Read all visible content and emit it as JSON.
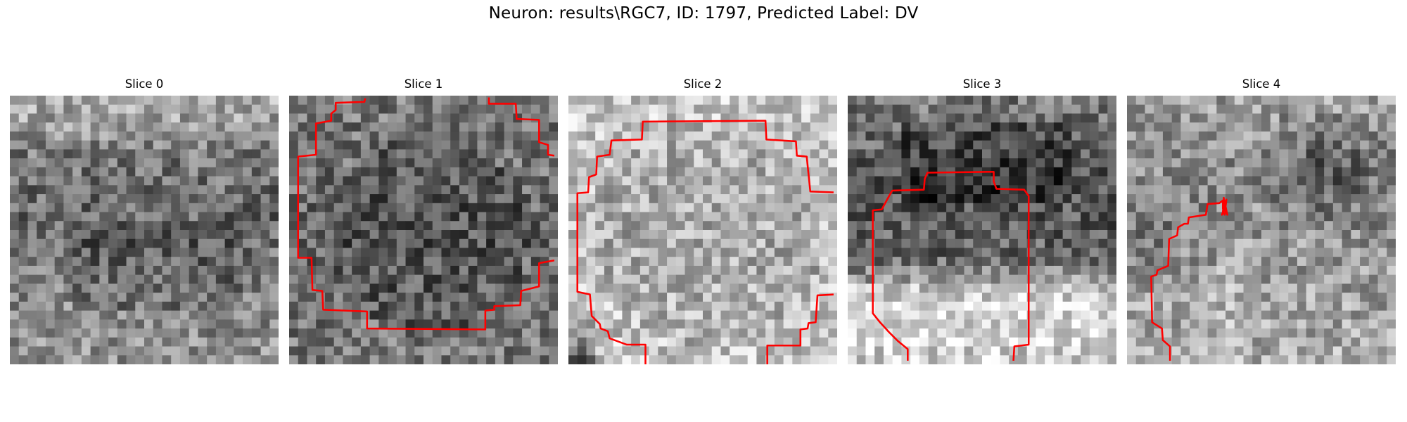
{
  "figure": {
    "title": "Neuron: results\\RGC7, ID: 1797, Predicted Label: DV"
  },
  "contour_color": "#ff0000",
  "panels": [
    {
      "title": "Slice 0",
      "seed": 11,
      "base": [
        [
          0,
          0.62
        ],
        [
          0.25,
          0.45
        ],
        [
          0.5,
          0.4
        ],
        [
          0.75,
          0.52
        ],
        [
          1,
          0.58
        ]
      ],
      "contour": []
    },
    {
      "title": "Slice 1",
      "seed": 27,
      "base": [
        [
          0,
          0.45
        ],
        [
          0.5,
          0.38
        ],
        [
          1,
          0.45
        ]
      ],
      "contour": []
    },
    {
      "title": "Slice 2",
      "seed": 43,
      "base": [
        [
          0,
          0.72
        ],
        [
          0.5,
          0.66
        ],
        [
          1,
          0.72
        ]
      ],
      "contour": []
    },
    {
      "title": "Slice 3",
      "seed": 59,
      "base": [
        [
          0,
          0.48
        ],
        [
          0.35,
          0.32
        ],
        [
          0.6,
          0.4
        ],
        [
          0.75,
          0.74
        ],
        [
          1,
          0.8
        ]
      ],
      "contour": []
    },
    {
      "title": "Slice 4",
      "seed": 71,
      "base": [
        [
          0,
          0.62
        ],
        [
          0.3,
          0.55
        ],
        [
          0.5,
          0.58
        ],
        [
          0.7,
          0.62
        ],
        [
          1,
          0.68
        ]
      ],
      "contour": []
    }
  ]
}
